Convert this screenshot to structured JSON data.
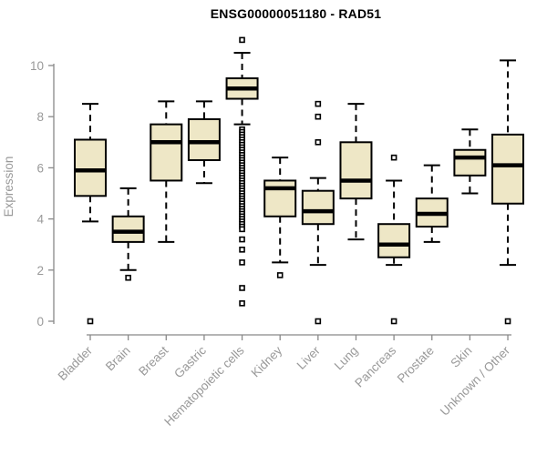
{
  "chart_data": {
    "type": "boxplot",
    "title": "ENSG00000051180 - RAD51",
    "ylabel": "Expression",
    "xlabel": "",
    "ylim": [
      0,
      11.2
    ],
    "yticks": [
      0,
      2,
      4,
      6,
      8,
      10
    ],
    "grid": false,
    "legend": "none",
    "categories": [
      "Bladder",
      "Brain",
      "Breast",
      "Gastric",
      "Hematopoietic cells",
      "Kidney",
      "Liver",
      "Lung",
      "Pancreas",
      "Prostate",
      "Skin",
      "Unknown / Other"
    ],
    "series": [
      {
        "category": "Bladder",
        "low": 3.9,
        "q1": 4.9,
        "median": 5.9,
        "q3": 7.1,
        "high": 8.5,
        "outliers": [
          0
        ]
      },
      {
        "category": "Brain",
        "low": 2.0,
        "q1": 3.1,
        "median": 3.5,
        "q3": 4.1,
        "high": 5.2,
        "outliers": [
          1.7
        ]
      },
      {
        "category": "Breast",
        "low": 3.1,
        "q1": 5.5,
        "median": 7.0,
        "q3": 7.7,
        "high": 8.6,
        "outliers": []
      },
      {
        "category": "Gastric",
        "low": 5.4,
        "q1": 6.3,
        "median": 7.0,
        "q3": 7.9,
        "high": 8.6,
        "outliers": []
      },
      {
        "category": "Hematopoietic cells",
        "low": 7.7,
        "q1": 8.7,
        "median": 9.1,
        "q3": 9.5,
        "high": 10.5,
        "outliers": [
          11.0,
          7.5,
          7.4,
          7.3,
          7.2,
          7.1,
          7.0,
          6.9,
          6.8,
          6.7,
          6.6,
          6.5,
          6.4,
          6.3,
          6.2,
          6.1,
          6.0,
          5.9,
          5.8,
          5.7,
          5.6,
          5.5,
          5.4,
          5.3,
          5.2,
          5.1,
          5.0,
          4.9,
          4.8,
          4.7,
          4.6,
          4.5,
          4.4,
          4.3,
          4.2,
          4.1,
          4.0,
          3.9,
          3.8,
          3.7,
          3.6,
          3.2,
          2.8,
          2.3,
          1.3,
          0.7
        ]
      },
      {
        "category": "Kidney",
        "low": 2.3,
        "q1": 4.1,
        "median": 5.2,
        "q3": 5.5,
        "high": 6.4,
        "outliers": [
          1.8
        ]
      },
      {
        "category": "Liver",
        "low": 2.2,
        "q1": 3.8,
        "median": 4.3,
        "q3": 5.1,
        "high": 5.6,
        "outliers": [
          8.5,
          8.0,
          7.0,
          0
        ]
      },
      {
        "category": "Lung",
        "low": 3.2,
        "q1": 4.8,
        "median": 5.5,
        "q3": 7.0,
        "high": 8.5,
        "outliers": []
      },
      {
        "category": "Pancreas",
        "low": 2.2,
        "q1": 2.5,
        "median": 3.0,
        "q3": 3.8,
        "high": 5.5,
        "outliers": [
          6.4,
          0
        ]
      },
      {
        "category": "Prostate",
        "low": 3.1,
        "q1": 3.7,
        "median": 4.2,
        "q3": 4.8,
        "high": 6.1,
        "outliers": []
      },
      {
        "category": "Skin",
        "low": 5.0,
        "q1": 5.7,
        "median": 6.4,
        "q3": 6.7,
        "high": 7.5,
        "outliers": []
      },
      {
        "category": "Unknown / Other",
        "low": 2.2,
        "q1": 4.6,
        "median": 6.1,
        "q3": 7.3,
        "high": 10.2,
        "outliers": [
          0
        ]
      }
    ],
    "colors": {
      "background": "#FFFFFF",
      "box_fill": "#EEE7C6",
      "box_border": "#000000",
      "median": "#000000",
      "whisker": "#000000",
      "outlier_fill": "#FFFFFF",
      "outlier_border": "#000000",
      "axis": "#898989",
      "tick_label": "#999999",
      "title": "#000000"
    }
  }
}
